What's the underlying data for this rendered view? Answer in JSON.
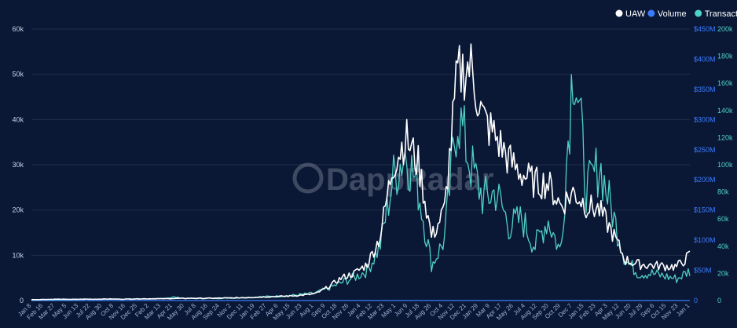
{
  "chart_data": {
    "type": "line",
    "watermark": "DappRadar",
    "legend": [
      {
        "name": "UAW",
        "color": "#ffffff"
      },
      {
        "name": "Volume",
        "color": "#3b7bff"
      },
      {
        "name": "Transactions",
        "color": "#4fd1c5"
      }
    ],
    "y_left": {
      "ticks": [
        "0",
        "10k",
        "20k",
        "30k",
        "40k",
        "50k",
        "60k"
      ],
      "range": [
        0,
        60000
      ]
    },
    "y_right_volume": {
      "ticks": [
        "0",
        "$50M",
        "$100M",
        "$150M",
        "$200M",
        "$250M",
        "$300M",
        "$350M",
        "$400M",
        "$450M"
      ],
      "range": [
        0,
        450000000
      ]
    },
    "y_right_transactions": {
      "ticks": [
        "0",
        "20k",
        "40k",
        "60k",
        "80k",
        "100k",
        "120k",
        "140k",
        "160k",
        "180k",
        "200k"
      ],
      "range": [
        0,
        200000
      ]
    },
    "x_ticks": [
      "Jan 8",
      "Feb 16",
      "Mar 27",
      "May 5",
      "Jun 13",
      "Jul 22",
      "Aug 30",
      "Oct 8",
      "Nov 16",
      "Dec 25",
      "Feb 2",
      "Mar 13",
      "Apr 21",
      "May 30",
      "Jul 8",
      "Aug 16",
      "Sep 24",
      "Nov 2",
      "Dec 11",
      "Jan 19",
      "Feb 27",
      "Apr 6",
      "May 15",
      "Jun 23",
      "Aug 1",
      "Sep 9",
      "Oct 18",
      "Nov 26",
      "Jan 4",
      "Feb 12",
      "Mar 23",
      "May 1",
      "Jun 9",
      "Jul 18",
      "Aug 26",
      "Oct 4",
      "Nov 12",
      "Dec 21",
      "Jan 29",
      "Mar 9",
      "Apr 17",
      "May 26",
      "Jul 4",
      "Aug 12",
      "Sep 20",
      "Oct 29",
      "Dec 7",
      "Jan 15",
      "Feb 23",
      "Apr 3",
      "May 12",
      "Jun 20",
      "Jul 29",
      "Sep 6",
      "Oct 15",
      "Nov 23",
      "Jan 1"
    ],
    "series": [
      {
        "name": "UAW",
        "axis": "left",
        "values": [
          200,
          250,
          300,
          250,
          300,
          300,
          350,
          300,
          350,
          400,
          400,
          450,
          500,
          500,
          500,
          550,
          600,
          700,
          800,
          900,
          1000,
          1200,
          1500,
          3000,
          5000,
          6000,
          8000,
          14000,
          30000,
          36000,
          30000,
          14000,
          20000,
          50000,
          52000,
          40000,
          36000,
          31000,
          28000,
          26000,
          26000,
          21000,
          24000,
          21000,
          20000,
          15000,
          9000,
          8000,
          7800,
          7600,
          7500,
          10000
        ]
      },
      {
        "name": "Transactions",
        "axis": "right2",
        "values": [
          500,
          600,
          700,
          800,
          900,
          1000,
          1000,
          1100,
          1200,
          1200,
          1300,
          2500,
          1500,
          1600,
          1700,
          1800,
          2000,
          2400,
          2800,
          3200,
          3600,
          4500,
          5500,
          9000,
          13000,
          17000,
          22000,
          40000,
          90000,
          110000,
          80000,
          26000,
          45000,
          140000,
          100000,
          75000,
          80000,
          55000,
          60000,
          40000,
          60000,
          35000,
          185000,
          80000,
          100000,
          65000,
          30000,
          20000,
          20000,
          18000,
          16000,
          22000
        ]
      },
      {
        "name": "Volume",
        "axis": "right1",
        "values": [
          0,
          0,
          0,
          0,
          0,
          0,
          0,
          0,
          0,
          0,
          0,
          0,
          0,
          0,
          0,
          0,
          0,
          0,
          0,
          0,
          0,
          0,
          0,
          0,
          0,
          0,
          0,
          0,
          0,
          0,
          0,
          0,
          0,
          0,
          0,
          0,
          0,
          0,
          0,
          0,
          0,
          0,
          0,
          0,
          0,
          0,
          0,
          0,
          0,
          0,
          0,
          0
        ]
      }
    ]
  }
}
